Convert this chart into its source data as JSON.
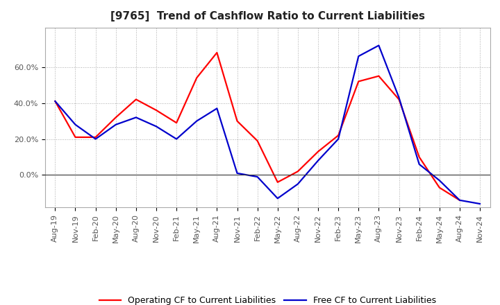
{
  "title": "[9765]  Trend of Cashflow Ratio to Current Liabilities",
  "x_labels": [
    "Aug-19",
    "Nov-19",
    "Feb-20",
    "May-20",
    "Aug-20",
    "Nov-20",
    "Feb-21",
    "May-21",
    "Aug-21",
    "Nov-21",
    "Feb-22",
    "May-22",
    "Aug-22",
    "Nov-22",
    "Feb-23",
    "May-23",
    "Aug-23",
    "Nov-23",
    "Feb-24",
    "May-24",
    "Aug-24",
    "Nov-24"
  ],
  "operating_cf": [
    0.41,
    0.21,
    0.21,
    0.32,
    0.42,
    0.36,
    0.29,
    0.54,
    0.68,
    0.3,
    0.19,
    -0.04,
    0.02,
    0.13,
    0.22,
    0.52,
    0.55,
    0.42,
    0.1,
    -0.07,
    -0.14,
    null
  ],
  "free_cf": [
    0.41,
    0.28,
    0.2,
    0.28,
    0.32,
    0.27,
    0.2,
    0.3,
    0.37,
    0.01,
    -0.01,
    -0.13,
    -0.05,
    0.08,
    0.2,
    0.66,
    0.72,
    0.43,
    0.06,
    -0.03,
    -0.14,
    -0.16
  ],
  "operating_color": "#ff0000",
  "free_color": "#0000cc",
  "background_color": "#ffffff",
  "grid_color": "#aaaaaa",
  "ylim": [
    -0.18,
    0.82
  ],
  "yticks": [
    0.0,
    0.2,
    0.4,
    0.6
  ],
  "ytick_labels": [
    "0.0%",
    "20.0%",
    "40.0%",
    "60.0%"
  ],
  "title_fontsize": 11,
  "legend_fontsize": 9,
  "tick_fontsize": 8
}
